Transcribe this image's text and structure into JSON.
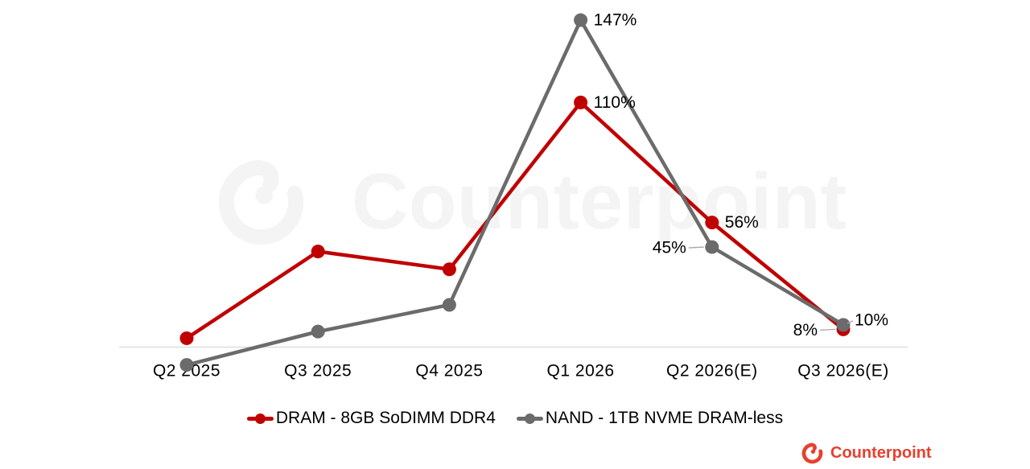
{
  "watermark": {
    "text": "Counterpoint"
  },
  "brand": {
    "name": "Counterpoint",
    "color": "#e8402e"
  },
  "chart_data": {
    "type": "line",
    "categories": [
      "Q2 2025",
      "Q3 2025",
      "Q4 2025",
      "Q1 2026",
      "Q2 2026(E)",
      "Q3 2026(E)"
    ],
    "series": [
      {
        "name": "DRAM - 8GB SoDIMM DDR4",
        "color": "#c00000",
        "values": [
          4,
          43,
          35,
          110,
          56,
          8
        ],
        "labels": [
          {
            "i": 3,
            "text": "110%",
            "side": "right"
          },
          {
            "i": 4,
            "text": "56%",
            "side": "right"
          },
          {
            "i": 5,
            "text": "8%",
            "side": "left",
            "leader": true
          }
        ]
      },
      {
        "name": "NAND - 1TB NVME DRAM-less",
        "color": "#6b6b6b",
        "values": [
          -8,
          7,
          19,
          147,
          45,
          10
        ],
        "labels": [
          {
            "i": 3,
            "text": "147%",
            "side": "right"
          },
          {
            "i": 4,
            "text": "45%",
            "side": "left",
            "leader": true
          },
          {
            "i": 5,
            "text": "10%",
            "side": "topright",
            "leader": true
          }
        ]
      }
    ],
    "unit": "%",
    "ylim": [
      -20,
      160
    ],
    "axis_baseline_value": 0,
    "gridlines": false,
    "legend_position": "bottom",
    "xlabel": "",
    "ylabel": ""
  }
}
